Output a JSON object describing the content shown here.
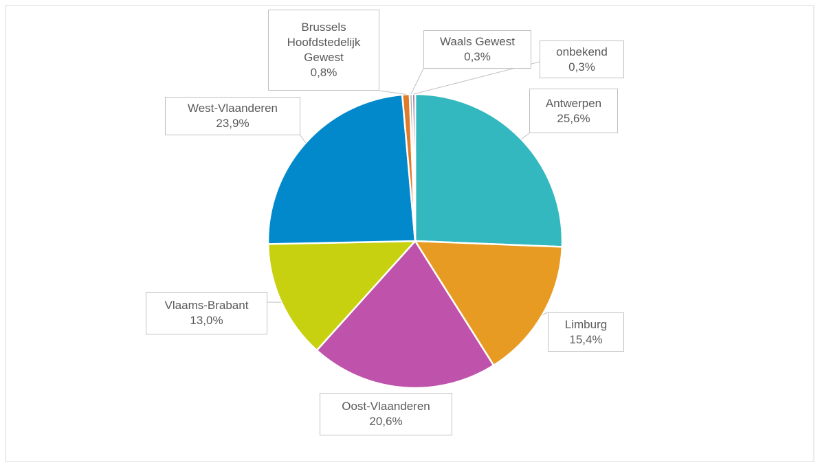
{
  "chart_data": {
    "type": "pie",
    "categories": [
      "Antwerpen",
      "Limburg",
      "Oost-Vlaanderen",
      "Vlaams-Brabant",
      "West-Vlaanderen",
      "Brussels Hoofdstedelijk Gewest",
      "Waals Gewest",
      "onbekend"
    ],
    "values": [
      25.6,
      15.4,
      20.6,
      13.0,
      23.9,
      0.8,
      0.3,
      0.3
    ],
    "value_labels": [
      "25,6%",
      "15,4%",
      "20,6%",
      "13,0%",
      "23,9%",
      "0,8%",
      "0,3%",
      "0,3%"
    ],
    "colors": [
      "#33b8bf",
      "#e89b22",
      "#bf52aa",
      "#c8d10f",
      "#0189cc",
      "#e07b2a",
      "#a5a5a5",
      "#6f5f9f"
    ]
  }
}
